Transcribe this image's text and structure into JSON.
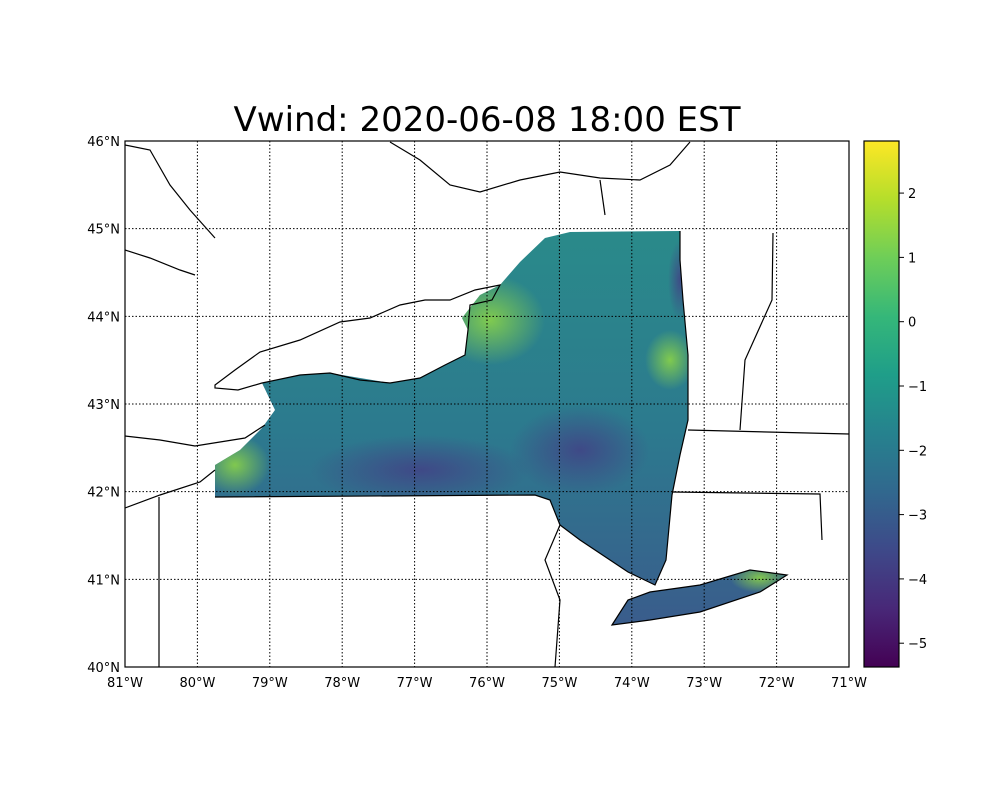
{
  "title": "Vwind: 2020-06-08 18:00 EST",
  "map": {
    "projection": "cylindrical",
    "lon_range": [
      -81,
      -71
    ],
    "lat_range": [
      40,
      46
    ],
    "lon_ticks": [
      -81,
      -80,
      -79,
      -78,
      -77,
      -76,
      -75,
      -74,
      -73,
      -72,
      -71
    ],
    "lon_labels": [
      "81°W",
      "80°W",
      "79°W",
      "78°W",
      "77°W",
      "76°W",
      "75°W",
      "74°W",
      "73°W",
      "72°W",
      "71°W"
    ],
    "lat_ticks": [
      40,
      41,
      42,
      43,
      44,
      45,
      46
    ],
    "lat_labels": [
      "40°N",
      "41°N",
      "42°N",
      "43°N",
      "44°N",
      "45°N",
      "46°N"
    ],
    "gridlines": "dotted",
    "region": "New York State",
    "variable": "Vwind"
  },
  "colorbar": {
    "colormap": "viridis",
    "range": [
      -5.37,
      2.81
    ],
    "ticks": [
      2,
      1,
      0,
      -1,
      -2,
      -3,
      -4,
      -5
    ],
    "tick_labels": [
      "2",
      "1",
      "0",
      "−1",
      "−2",
      "−3",
      "−4",
      "−5"
    ],
    "colors": [
      "#440154",
      "#482878",
      "#3e4989",
      "#31688e",
      "#26828e",
      "#1f9e89",
      "#35b779",
      "#6ece58",
      "#b5de2b",
      "#fde725"
    ]
  }
}
